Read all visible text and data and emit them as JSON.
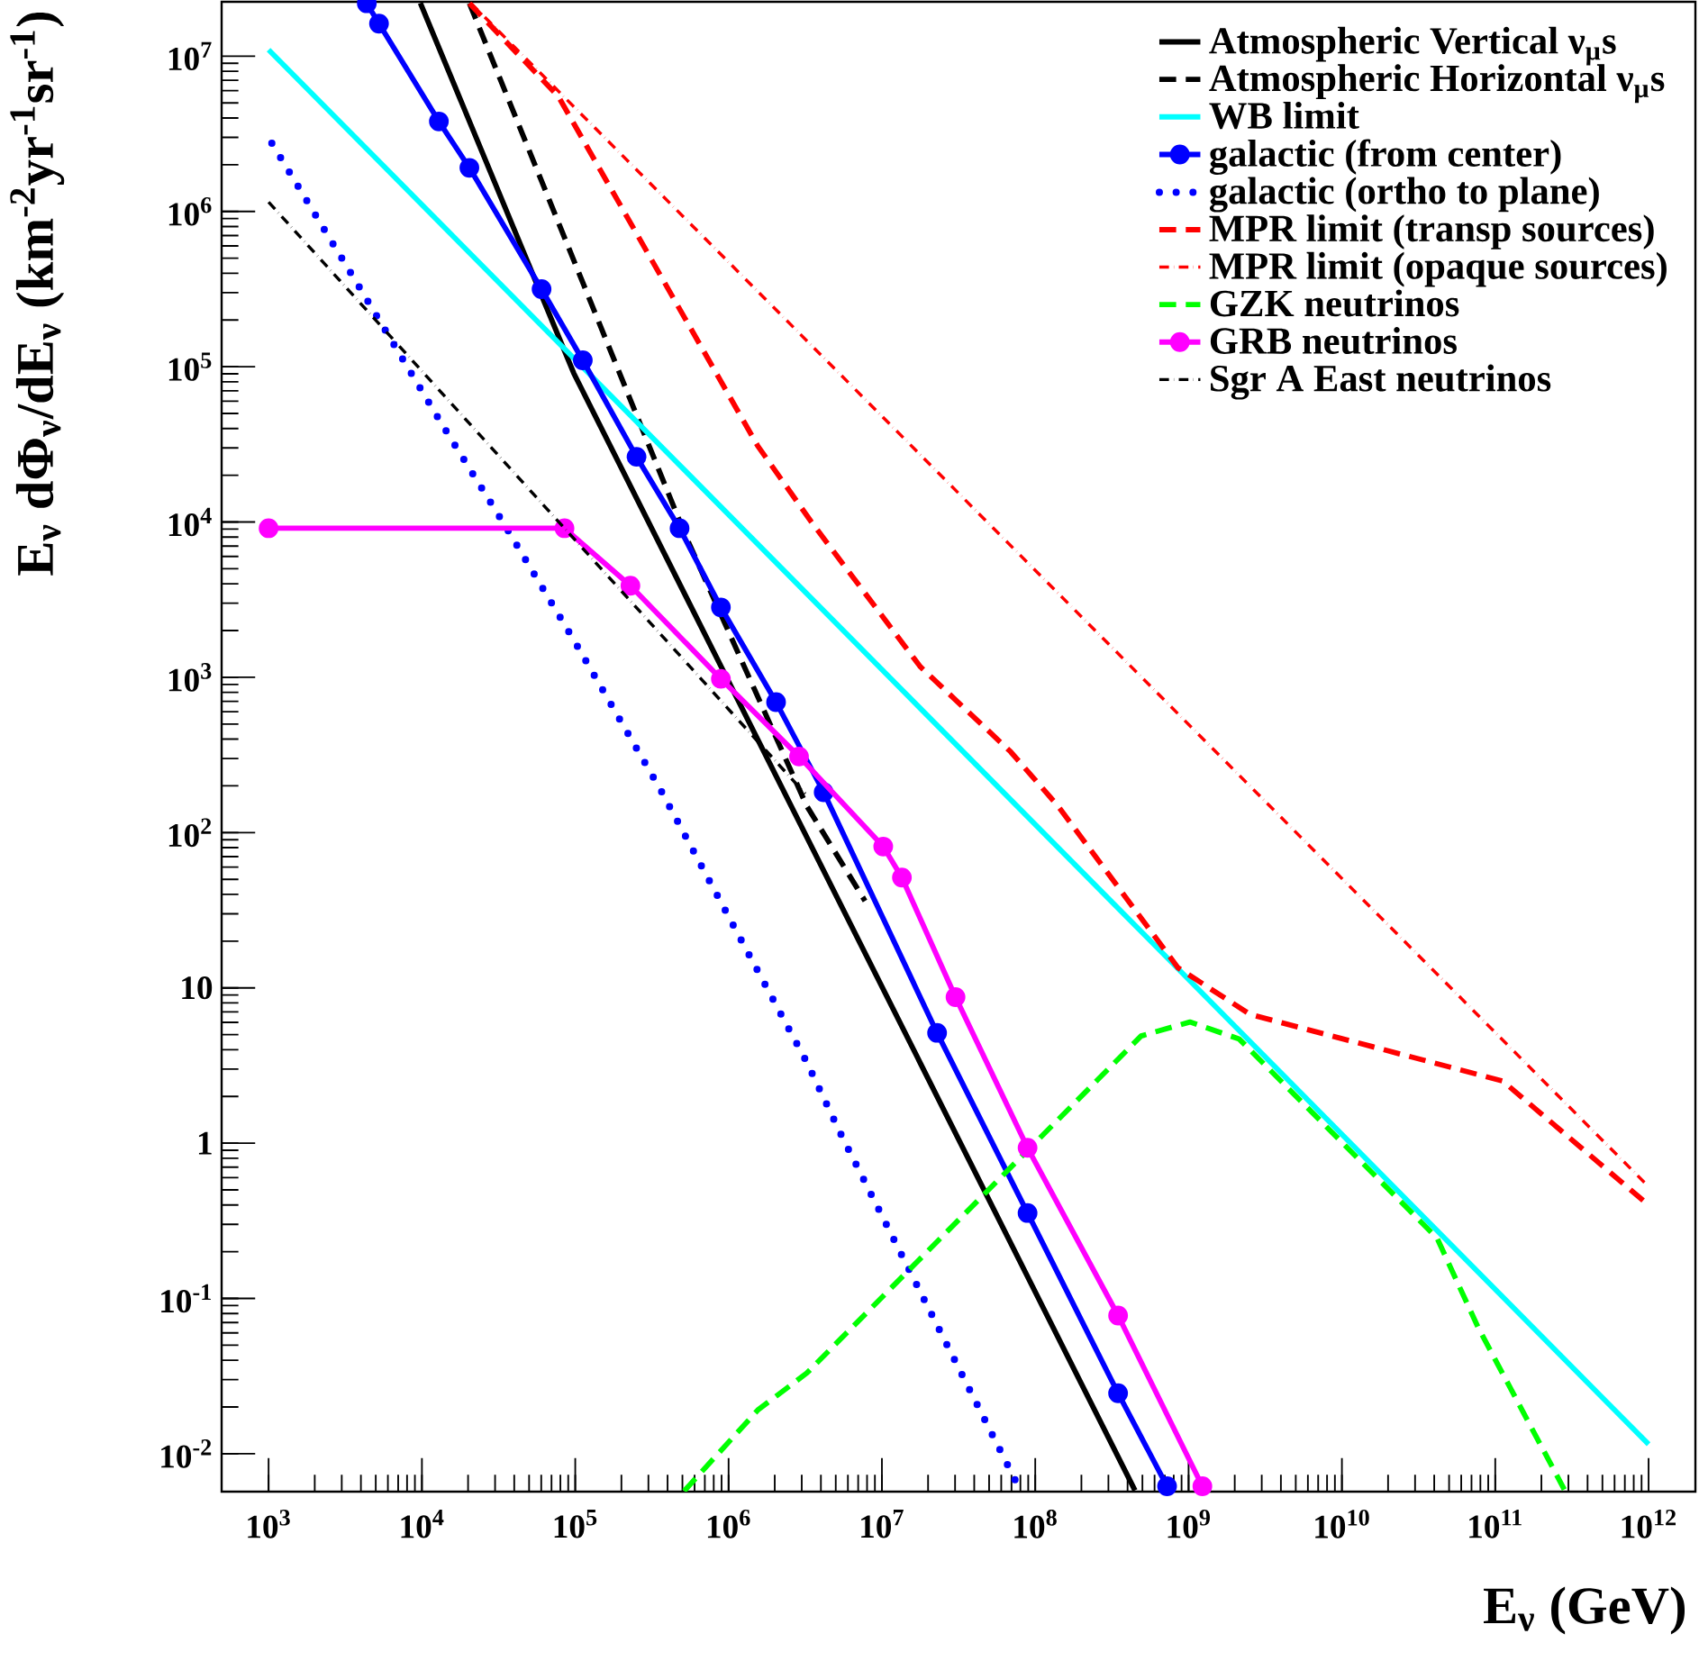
{
  "chart_data": {
    "type": "line",
    "xlabel": "E$_{ν}$ (GeV)",
    "ylabel": "E$_{ν}$ dΦ$_{ν}$/dE$_{ν}$ (km$^{-2}$yr$^{-1}$sr$^{-1}$)",
    "log": "xy",
    "grid": false,
    "legend": "top right",
    "xlim": [
      494,
      2020000000000.0
    ],
    "ylim": [
      0.0057,
      22400000.0
    ],
    "xticks": [
      {
        "value": 1000.0,
        "label": "10$^{3}$"
      },
      {
        "value": 10000.0,
        "label": "10$^{4}$"
      },
      {
        "value": 100000.0,
        "label": "10$^{5}$"
      },
      {
        "value": 1000000.0,
        "label": "10$^{6}$"
      },
      {
        "value": 10000000.0,
        "label": "10$^{7}$"
      },
      {
        "value": 100000000.0,
        "label": "10$^{8}$"
      },
      {
        "value": 1000000000.0,
        "label": "10$^{9}$"
      },
      {
        "value": 10000000000.0,
        "label": "10$^{10}$"
      },
      {
        "value": 100000000000.0,
        "label": "10$^{11}$"
      },
      {
        "value": 1000000000000.0,
        "label": "10$^{12}$"
      }
    ],
    "yticks": [
      {
        "value": 0.01,
        "label": "10$^{-2}$"
      },
      {
        "value": 0.1,
        "label": "10$^{-1}$"
      },
      1,
      10,
      {
        "value": 100,
        "label": "10$^{2}$"
      },
      {
        "value": 1000.0,
        "label": "10$^{3}$"
      },
      {
        "value": 10000.0,
        "label": "10$^{4}$"
      },
      {
        "value": 100000.0,
        "label": "10$^{5}$"
      },
      {
        "value": 1000000.0,
        "label": "10$^{6}$"
      },
      {
        "value": 10000000.0,
        "label": "10$^{7}$"
      }
    ],
    "series": [
      {
        "name": "Atmospheric Vertical ν$_{μ}$s",
        "color": "#000000",
        "line_style": "solid",
        "marker": "none",
        "x": [
          9770,
          97700,
          447000000.0
        ],
        "values": [
          22000000.0,
          91000.0,
          0.0058
        ]
      },
      {
        "name": "Atmospheric Horizontal ν$_{μ}$s",
        "color": "#000000",
        "line_style": "dashed",
        "marker": "none",
        "x": [
          20400,
          525000,
          3240000.0,
          7760000.0
        ],
        "values": [
          21900000.0,
          8130,
          148,
          36.3
        ]
      },
      {
        "name": "WB limit",
        "color": "#00ffff",
        "line_style": "solid",
        "marker": "none",
        "x": [
          1000,
          1000000000000.0
        ],
        "values": [
          11000000.0,
          0.0115
        ]
      },
      {
        "name": "galactic (from center)",
        "color": "#0000ff",
        "line_style": "solid",
        "marker": "circle",
        "x": [
          4370,
          5250,
          12900,
          20400,
          60300,
          112000,
          251000,
          479000,
          891000,
          2040000.0,
          4170000.0,
          22900000.0,
          89100000.0,
          347000000.0,
          724000000.0
        ],
        "values": [
          21900000.0,
          16200000.0,
          3800000.0,
          1910000.0,
          316000,
          110000,
          26300,
          9120,
          2820,
          692,
          182,
          5.13,
          0.355,
          0.0245,
          0.00617
        ]
      },
      {
        "name": "galactic (ortho to plane)",
        "color": "#0000ff",
        "line_style": "dotted",
        "marker": "none",
        "x": [
          1050,
          3980,
          14100,
          34700,
          102000,
          363000,
          3240000.0,
          5500000.0,
          25100000.0,
          77600000.0
        ],
        "values": [
          2750000.0,
          316000,
          39800,
          9550,
          1620,
          186,
          3.31,
          1.1,
          0.0562,
          0.00617
        ]
      },
      {
        "name": "MPR limit (transp sources)",
        "color": "#ff0000",
        "line_style": "dashed",
        "marker": "none",
        "x": [
          20400,
          77600,
          1550000.0,
          3470000.0,
          17800000.0,
          69200000.0,
          141000000.0,
          851000000.0,
          2510000000.0,
          112000000000.0,
          977000000000.0
        ],
        "values": [
          21900000.0,
          5500000.0,
          30900,
          10000,
          1170,
          331,
          148,
          13.5,
          6.76,
          2.51,
          0.407
        ]
      },
      {
        "name": "MPR limit (opaque sources)",
        "color": "#ff0000",
        "line_style": "dashdotted",
        "marker": "none",
        "x": [
          20900,
          977000000000.0
        ],
        "values": [
          21900000.0,
          0.537
        ]
      },
      {
        "name": "GZK neutrinos",
        "color": "#00ff00",
        "line_style": "dashed",
        "marker": "none",
        "x": [
          513000,
          1550000.0,
          3240000.0,
          490000000.0,
          1020000000.0,
          2140000000.0,
          41700000000.0,
          77600000000.0,
          282000000000.0
        ],
        "values": [
          0.00575,
          0.0191,
          0.0331,
          4.9,
          6.03,
          4.68,
          0.245,
          0.0646,
          0.00589
        ]
      },
      {
        "name": "GRB neutrinos",
        "color": "#ff00ff",
        "line_style": "solid",
        "marker": "circle",
        "x": [
          1000,
          85100,
          229000,
          891000,
          2880000.0,
          10200000.0,
          13500000.0,
          30200000.0,
          89100000.0,
          347000000.0,
          1230000000.0
        ],
        "values": [
          9120,
          9120,
          3890,
          977,
          309,
          81.3,
          51.3,
          8.71,
          0.933,
          0.0776,
          0.00617
        ]
      },
      {
        "name": "Sgr A East neutrinos",
        "color": "#000000",
        "line_style": "dashdotted",
        "marker": "none",
        "x": [
          1000,
          3160000.0
        ],
        "values": [
          1150000.0,
          178
        ]
      }
    ]
  }
}
